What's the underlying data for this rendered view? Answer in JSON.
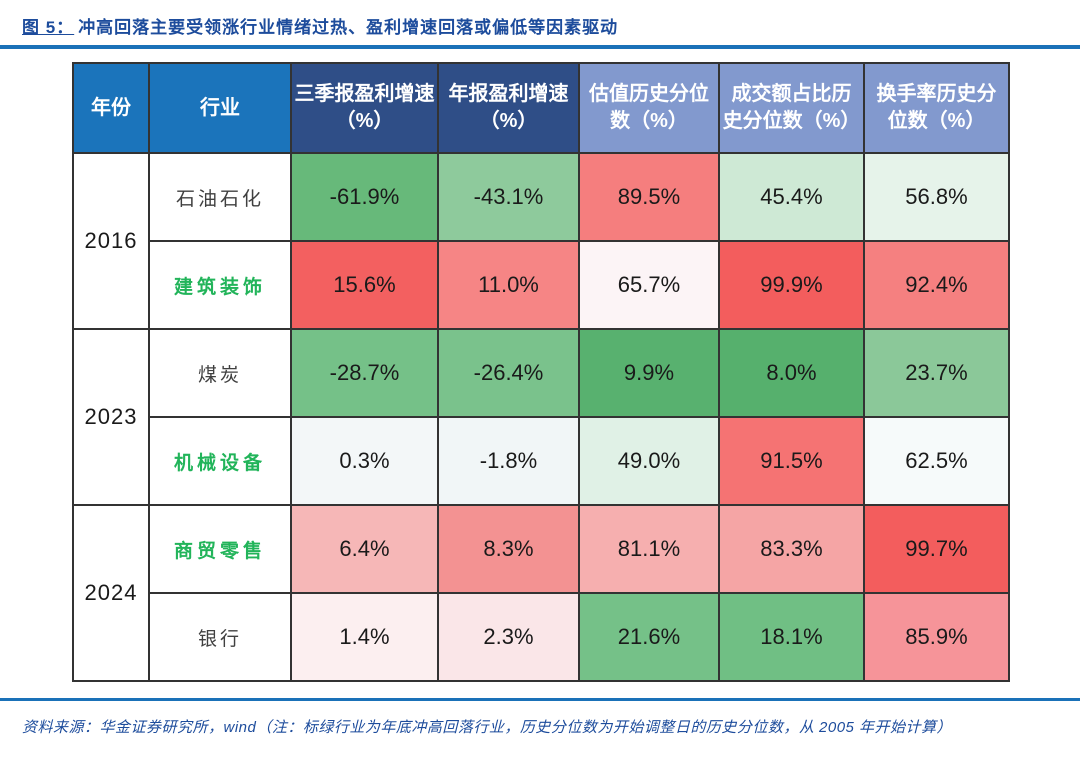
{
  "figure": {
    "title_prefix": "图 5：",
    "title_text": "冲高回落主要受领涨行业情绪过热、盈利增速回落或偏低等因素驱动"
  },
  "colors": {
    "title_blue": "#1d4c9c",
    "rule_blue": "#1a71b8",
    "header_bright_blue": "#1b74bb",
    "header_navy": "#2f4e87",
    "header_light_blue": "#8299ce",
    "highlight_green": "#22b45a",
    "border_dark": "#333333"
  },
  "table": {
    "headers": [
      {
        "label": "年份",
        "bg": "#1b74bb"
      },
      {
        "label": "行业",
        "bg": "#1b74bb"
      },
      {
        "label": "三季报盈利增速（%）",
        "bg": "#2f4e87"
      },
      {
        "label": "年报盈利增速（%）",
        "bg": "#2f4e87"
      },
      {
        "label": "估值历史分位数（%）",
        "bg": "#8299ce"
      },
      {
        "label": "成交额占比历史分位数（%）",
        "bg": "#8299ce"
      },
      {
        "label": "换手率历史分位数（%）",
        "bg": "#8299ce"
      }
    ],
    "groups": [
      {
        "year": "2016",
        "rows": [
          {
            "industry": "石油石化",
            "highlighted": false,
            "cells": [
              {
                "value": "-61.9%",
                "bg": "#67b97a"
              },
              {
                "value": "-43.1%",
                "bg": "#8eca9c"
              },
              {
                "value": "89.5%",
                "bg": "#f57e7e"
              },
              {
                "value": "45.4%",
                "bg": "#cee9d5"
              },
              {
                "value": "56.8%",
                "bg": "#e6f3ea"
              }
            ]
          },
          {
            "industry": "建筑装饰",
            "highlighted": true,
            "cells": [
              {
                "value": "15.6%",
                "bg": "#f36060"
              },
              {
                "value": "11.0%",
                "bg": "#f68585"
              },
              {
                "value": "65.7%",
                "bg": "#fcf4f6"
              },
              {
                "value": "99.9%",
                "bg": "#f35d5d"
              },
              {
                "value": "92.4%",
                "bg": "#f58080"
              }
            ]
          }
        ]
      },
      {
        "year": "2023",
        "rows": [
          {
            "industry": "煤炭",
            "highlighted": false,
            "cells": [
              {
                "value": "-28.7%",
                "bg": "#75c188"
              },
              {
                "value": "-26.4%",
                "bg": "#7ac28c"
              },
              {
                "value": "9.9%",
                "bg": "#58b16f"
              },
              {
                "value": "8.0%",
                "bg": "#56b06d"
              },
              {
                "value": "23.7%",
                "bg": "#8bc899"
              }
            ]
          },
          {
            "industry": "机械设备",
            "highlighted": true,
            "cells": [
              {
                "value": "0.3%",
                "bg": "#f3f7f8"
              },
              {
                "value": "-1.8%",
                "bg": "#f1f6f7"
              },
              {
                "value": "49.0%",
                "bg": "#e0f1e6"
              },
              {
                "value": "91.5%",
                "bg": "#f57373"
              },
              {
                "value": "62.5%",
                "bg": "#f6fafa"
              }
            ]
          }
        ]
      },
      {
        "year": "2024",
        "rows": [
          {
            "industry": "商贸零售",
            "highlighted": true,
            "cells": [
              {
                "value": "6.4%",
                "bg": "#f6b7b7"
              },
              {
                "value": "8.3%",
                "bg": "#f39292"
              },
              {
                "value": "81.1%",
                "bg": "#f6afaf"
              },
              {
                "value": "83.3%",
                "bg": "#f5a5a5"
              },
              {
                "value": "99.7%",
                "bg": "#f35d5d"
              }
            ]
          },
          {
            "industry": "银行",
            "highlighted": false,
            "cells": [
              {
                "value": "1.4%",
                "bg": "#fceff0"
              },
              {
                "value": "2.3%",
                "bg": "#fae6e8"
              },
              {
                "value": "21.6%",
                "bg": "#75c188"
              },
              {
                "value": "18.1%",
                "bg": "#70bf84"
              },
              {
                "value": "85.9%",
                "bg": "#f69499"
              }
            ]
          }
        ]
      }
    ]
  },
  "footer": {
    "source_note": "资料来源：华金证券研究所，wind（注：标绿行业为年底冲高回落行业，历史分位数为开始调整日的历史分位数，从 2005 年开始计算）"
  }
}
